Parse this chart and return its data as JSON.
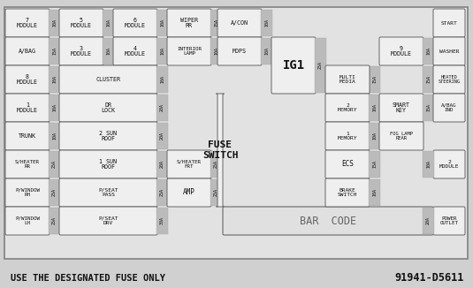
{
  "bg_color": "#d0d0d0",
  "box_bg": "#efefef",
  "box_border": "#666666",
  "amp_bg": "#bbbbbb",
  "text_color": "#111111",
  "title_bottom": "USE THE DESIGNATED FUSE ONLY",
  "part_number": "91941-D5611",
  "fuse_switch_label": "FUSE\nSWITCH",
  "bar_code_label": "BAR  CODE",
  "figw": 5.35,
  "figh": 3.26,
  "dpi": 100
}
